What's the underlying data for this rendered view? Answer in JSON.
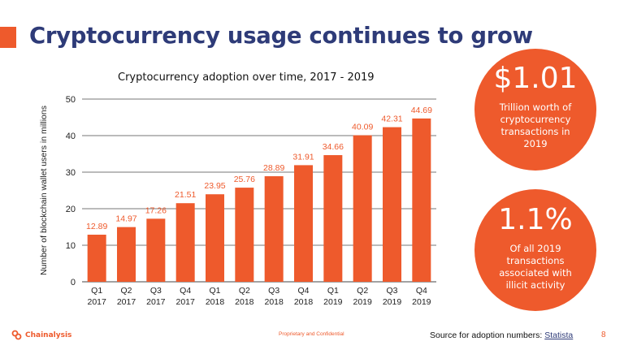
{
  "slide": {
    "title": "Cryptocurrency usage continues to grow",
    "accent_color": "#EE5A2C",
    "title_color": "#2E3B78"
  },
  "chart_data": {
    "type": "bar",
    "title": "Cryptocurrency adoption over time, 2017 - 2019",
    "ylabel": "Number of blockchain wallet users in millions",
    "xlabel": "",
    "ylim": [
      0,
      50
    ],
    "yticks": [
      0,
      10,
      20,
      30,
      40,
      50
    ],
    "grid": true,
    "bar_color": "#EE5A2C",
    "label_color": "#EE5A2C",
    "categories": [
      [
        "Q1",
        "2017"
      ],
      [
        "Q2",
        "2017"
      ],
      [
        "Q3",
        "2017"
      ],
      [
        "Q4",
        "2017"
      ],
      [
        "Q1",
        "2018"
      ],
      [
        "Q2",
        "2018"
      ],
      [
        "Q3",
        "2018"
      ],
      [
        "Q4",
        "2018"
      ],
      [
        "Q1",
        "2019"
      ],
      [
        "Q2",
        "2019"
      ],
      [
        "Q3",
        "2019"
      ],
      [
        "Q4",
        "2019"
      ]
    ],
    "values": [
      12.89,
      14.97,
      17.26,
      21.51,
      23.95,
      25.76,
      28.89,
      31.91,
      34.66,
      40.09,
      42.31,
      44.69
    ]
  },
  "stats": [
    {
      "value": "$1.01",
      "text": "Trillion worth of cryptocurrency transactions in 2019"
    },
    {
      "value": "1.1%",
      "text": "Of all 2019 transactions associated with illicit activity"
    }
  ],
  "footer": {
    "logo": "Chainalysis",
    "center": "Proprietary and Confidential",
    "source_prefix": "Source for adoption numbers: ",
    "source_link": "Statista",
    "page": "8"
  }
}
